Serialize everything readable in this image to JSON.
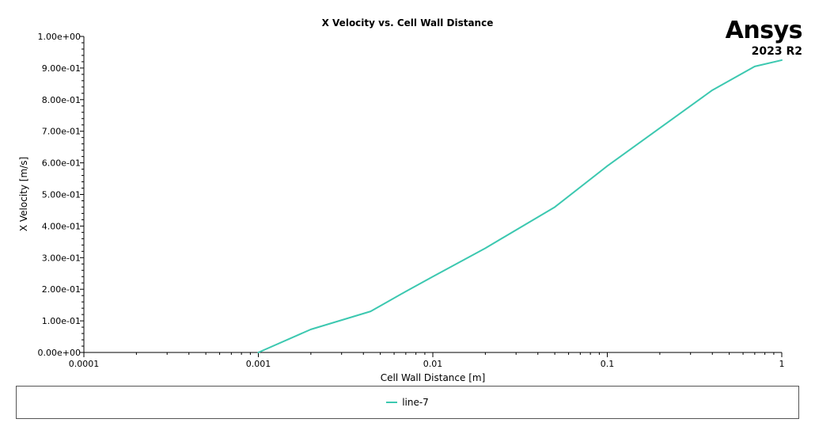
{
  "brand": {
    "name": "Ansys",
    "version": "2023 R2"
  },
  "chart_data": {
    "type": "line",
    "title": "X Velocity vs. Cell Wall Distance",
    "xlabel": "Cell Wall Distance [m]",
    "ylabel": "X Velocity [m/s]",
    "xscale": "log",
    "xlim": [
      0.0001,
      1
    ],
    "ylim": [
      0,
      1
    ],
    "x_ticks": [
      0.0001,
      0.001,
      0.01,
      0.1,
      1
    ],
    "x_tick_labels": [
      "0.0001",
      "0.001",
      "0.01",
      "0.1",
      "1"
    ],
    "y_ticks": [
      0,
      0.1,
      0.2,
      0.3,
      0.4,
      0.5,
      0.6,
      0.7,
      0.8,
      0.9,
      1.0
    ],
    "y_tick_labels": [
      "0.00e+00",
      "1.00e-01",
      "2.00e-01",
      "3.00e-01",
      "4.00e-01",
      "5.00e-01",
      "6.00e-01",
      "7.00e-01",
      "8.00e-01",
      "9.00e-01",
      "1.00e+00"
    ],
    "grid": false,
    "legend_position": "bottom",
    "series": [
      {
        "name": "line-7",
        "color": "#3cc8b0",
        "x": [
          0.001,
          0.002,
          0.0044,
          0.007,
          0.01,
          0.02,
          0.05,
          0.1,
          0.2,
          0.4,
          0.7,
          1.0
        ],
        "y": [
          0.0,
          0.073,
          0.13,
          0.193,
          0.24,
          0.33,
          0.46,
          0.59,
          0.71,
          0.83,
          0.905,
          0.925
        ]
      }
    ]
  }
}
